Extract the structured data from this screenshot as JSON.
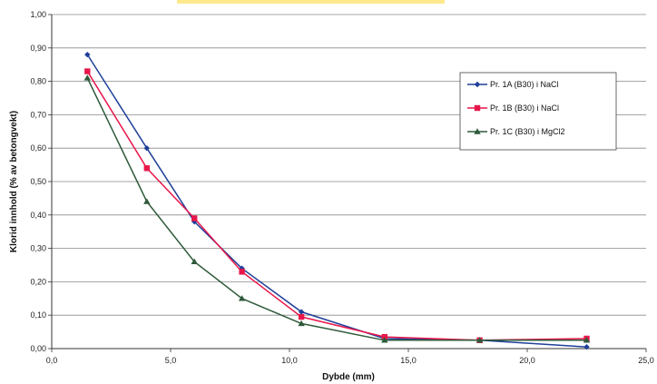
{
  "chart_data": {
    "type": "line",
    "title": "",
    "xlabel": "Dybde (mm)",
    "ylabel": "Klorid innhold (% av betongvekt)",
    "xlim": [
      0,
      25
    ],
    "ylim": [
      0,
      1
    ],
    "x_ticks": [
      "0,0",
      "5,0",
      "10,0",
      "15,0",
      "20,0",
      "25,0"
    ],
    "y_ticks": [
      "0,00",
      "0,10",
      "0,20",
      "0,30",
      "0,40",
      "0,50",
      "0,60",
      "0,70",
      "0,80",
      "0,90",
      "1,00"
    ],
    "grid": "horizontal",
    "legend_position": "right",
    "series": [
      {
        "name": "Pr. 1A (B30) i NaCl",
        "color": "#1f3f99",
        "marker": "diamond",
        "x": [
          1.5,
          4.0,
          6.0,
          8.0,
          10.5,
          14.0,
          18.0,
          22.5
        ],
        "y": [
          0.88,
          0.6,
          0.38,
          0.24,
          0.11,
          0.03,
          0.025,
          0.005
        ]
      },
      {
        "name": "Pr. 1B (B30) i NaCl",
        "color": "#e8174b",
        "marker": "square",
        "x": [
          1.5,
          4.0,
          6.0,
          8.0,
          10.5,
          14.0,
          18.0,
          22.5
        ],
        "y": [
          0.83,
          0.54,
          0.39,
          0.23,
          0.095,
          0.035,
          0.025,
          0.03
        ]
      },
      {
        "name": "Pr. 1C (B30) i MgCl2",
        "color": "#2e5a3a",
        "marker": "triangle",
        "x": [
          1.5,
          4.0,
          6.0,
          8.0,
          10.5,
          14.0,
          18.0,
          22.5
        ],
        "y": [
          0.81,
          0.44,
          0.26,
          0.15,
          0.075,
          0.025,
          0.025,
          0.025
        ]
      }
    ]
  }
}
